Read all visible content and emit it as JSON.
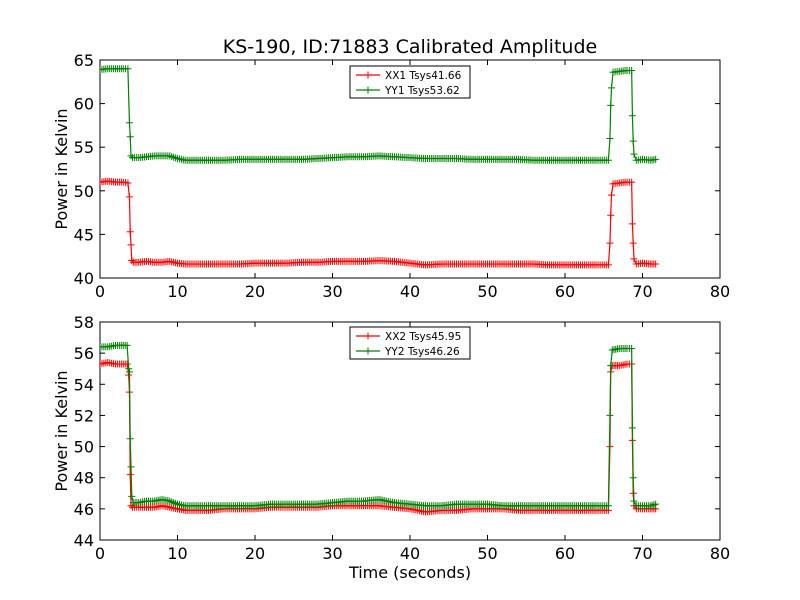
{
  "chart_data": [
    {
      "type": "line",
      "title": "KS-190, ID:71883 Calibrated Amplitude",
      "xlabel": "",
      "ylabel": "Power in Kelvin",
      "xlim": [
        0,
        80
      ],
      "ylim": [
        40,
        65
      ],
      "xticks": [
        0,
        10,
        20,
        30,
        40,
        50,
        60,
        70,
        80
      ],
      "yticks": [
        40,
        45,
        50,
        55,
        60,
        65
      ],
      "grid": false,
      "legend": "top-center",
      "series": [
        {
          "name": "XX1 Tsys41.66",
          "color": "#ff0000",
          "marker": "+",
          "points": [
            [
              0,
              51.0
            ],
            [
              1,
              51.1
            ],
            [
              2,
              51.0
            ],
            [
              3,
              51.0
            ],
            [
              3.6,
              50.9
            ],
            [
              3.8,
              49.3
            ],
            [
              3.9,
              45.3
            ],
            [
              4.0,
              43.8
            ],
            [
              4.1,
              42.0
            ],
            [
              4.3,
              41.8
            ],
            [
              5,
              41.8
            ],
            [
              6,
              41.9
            ],
            [
              7,
              41.8
            ],
            [
              8,
              41.8
            ],
            [
              9,
              41.9
            ],
            [
              10,
              41.7
            ],
            [
              11,
              41.6
            ],
            [
              12,
              41.6
            ],
            [
              14,
              41.6
            ],
            [
              16,
              41.6
            ],
            [
              18,
              41.6
            ],
            [
              20,
              41.7
            ],
            [
              22,
              41.7
            ],
            [
              24,
              41.7
            ],
            [
              26,
              41.8
            ],
            [
              28,
              41.8
            ],
            [
              30,
              41.9
            ],
            [
              32,
              41.9
            ],
            [
              34,
              41.9
            ],
            [
              36,
              42.0
            ],
            [
              38,
              41.9
            ],
            [
              40,
              41.7
            ],
            [
              42,
              41.5
            ],
            [
              44,
              41.6
            ],
            [
              46,
              41.6
            ],
            [
              48,
              41.6
            ],
            [
              50,
              41.6
            ],
            [
              52,
              41.6
            ],
            [
              54,
              41.6
            ],
            [
              56,
              41.6
            ],
            [
              58,
              41.5
            ],
            [
              60,
              41.5
            ],
            [
              62,
              41.5
            ],
            [
              64,
              41.5
            ],
            [
              65.6,
              41.5
            ],
            [
              65.8,
              44.0
            ],
            [
              65.9,
              47.2
            ],
            [
              66.0,
              49.5
            ],
            [
              66.2,
              50.8
            ],
            [
              67,
              50.9
            ],
            [
              68,
              51.0
            ],
            [
              68.6,
              51.0
            ],
            [
              68.7,
              46.2
            ],
            [
              68.8,
              44.0
            ],
            [
              68.9,
              42.2
            ],
            [
              69.2,
              41.6
            ],
            [
              70,
              41.7
            ],
            [
              71,
              41.6
            ],
            [
              71.7,
              41.6
            ]
          ]
        },
        {
          "name": "YY1 Tsys53.62",
          "color": "#008000",
          "marker": "+",
          "points": [
            [
              0,
              63.9
            ],
            [
              1,
              64.0
            ],
            [
              2,
              64.0
            ],
            [
              3,
              64.0
            ],
            [
              3.6,
              64.0
            ],
            [
              3.8,
              57.8
            ],
            [
              3.9,
              56.2
            ],
            [
              4.0,
              54.0
            ],
            [
              4.2,
              53.8
            ],
            [
              5,
              53.8
            ],
            [
              6,
              53.9
            ],
            [
              7,
              54.0
            ],
            [
              8,
              54.0
            ],
            [
              9,
              54.0
            ],
            [
              10,
              53.7
            ],
            [
              11,
              53.5
            ],
            [
              12,
              53.5
            ],
            [
              14,
              53.5
            ],
            [
              16,
              53.5
            ],
            [
              18,
              53.6
            ],
            [
              20,
              53.6
            ],
            [
              22,
              53.6
            ],
            [
              24,
              53.6
            ],
            [
              26,
              53.6
            ],
            [
              28,
              53.7
            ],
            [
              30,
              53.8
            ],
            [
              32,
              53.9
            ],
            [
              34,
              53.9
            ],
            [
              36,
              54.0
            ],
            [
              38,
              53.9
            ],
            [
              40,
              53.8
            ],
            [
              42,
              53.7
            ],
            [
              44,
              53.7
            ],
            [
              46,
              53.7
            ],
            [
              48,
              53.6
            ],
            [
              50,
              53.6
            ],
            [
              52,
              53.6
            ],
            [
              54,
              53.6
            ],
            [
              56,
              53.5
            ],
            [
              58,
              53.5
            ],
            [
              60,
              53.5
            ],
            [
              62,
              53.5
            ],
            [
              64,
              53.5
            ],
            [
              65.6,
              53.5
            ],
            [
              65.8,
              56.0
            ],
            [
              65.9,
              59.8
            ],
            [
              66.0,
              61.8
            ],
            [
              66.2,
              63.6
            ],
            [
              67,
              63.7
            ],
            [
              68,
              63.8
            ],
            [
              68.6,
              63.8
            ],
            [
              68.7,
              58.6
            ],
            [
              68.8,
              55.7
            ],
            [
              68.9,
              54.2
            ],
            [
              69.2,
              53.5
            ],
            [
              70,
              53.6
            ],
            [
              71,
              53.5
            ],
            [
              71.7,
              53.6
            ]
          ]
        }
      ]
    },
    {
      "type": "line",
      "title": "",
      "xlabel": "Time (seconds)",
      "ylabel": "Power in Kelvin",
      "xlim": [
        0,
        80
      ],
      "ylim": [
        44,
        58
      ],
      "xticks": [
        0,
        10,
        20,
        30,
        40,
        50,
        60,
        70,
        80
      ],
      "yticks": [
        44,
        46,
        48,
        50,
        52,
        54,
        56,
        58
      ],
      "grid": false,
      "legend": "top-center",
      "series": [
        {
          "name": "XX2 Tsys45.95",
          "color": "#ff0000",
          "marker": "+",
          "points": [
            [
              0,
              55.3
            ],
            [
              1,
              55.4
            ],
            [
              2,
              55.3
            ],
            [
              3,
              55.3
            ],
            [
              3.5,
              55.3
            ],
            [
              3.7,
              54.6
            ],
            [
              3.8,
              53.5
            ],
            [
              3.9,
              48.2
            ],
            [
              4.0,
              46.2
            ],
            [
              4.2,
              46.1
            ],
            [
              5,
              46.1
            ],
            [
              6,
              46.1
            ],
            [
              7,
              46.1
            ],
            [
              8,
              46.2
            ],
            [
              9,
              46.1
            ],
            [
              10,
              46.0
            ],
            [
              11,
              45.9
            ],
            [
              12,
              45.9
            ],
            [
              14,
              45.9
            ],
            [
              16,
              46.0
            ],
            [
              18,
              46.0
            ],
            [
              20,
              46.0
            ],
            [
              22,
              46.1
            ],
            [
              24,
              46.1
            ],
            [
              26,
              46.1
            ],
            [
              28,
              46.1
            ],
            [
              30,
              46.2
            ],
            [
              32,
              46.2
            ],
            [
              34,
              46.2
            ],
            [
              36,
              46.2
            ],
            [
              38,
              46.1
            ],
            [
              40,
              46.0
            ],
            [
              42,
              45.8
            ],
            [
              44,
              45.9
            ],
            [
              46,
              45.9
            ],
            [
              48,
              46.0
            ],
            [
              50,
              46.0
            ],
            [
              52,
              46.0
            ],
            [
              54,
              45.9
            ],
            [
              56,
              45.9
            ],
            [
              58,
              45.9
            ],
            [
              60,
              45.9
            ],
            [
              62,
              45.9
            ],
            [
              64,
              45.9
            ],
            [
              65.6,
              45.9
            ],
            [
              65.8,
              50.0
            ],
            [
              65.9,
              54.8
            ],
            [
              66.1,
              55.2
            ],
            [
              67,
              55.2
            ],
            [
              68,
              55.3
            ],
            [
              68.6,
              55.3
            ],
            [
              68.7,
              50.4
            ],
            [
              68.8,
              47.0
            ],
            [
              68.9,
              46.2
            ],
            [
              69.2,
              46.0
            ],
            [
              70,
              46.0
            ],
            [
              71,
              46.0
            ],
            [
              71.7,
              46.0
            ]
          ]
        },
        {
          "name": "YY2 Tsys46.26",
          "color": "#008000",
          "marker": "+",
          "points": [
            [
              0,
              56.4
            ],
            [
              1,
              56.4
            ],
            [
              2,
              56.5
            ],
            [
              3,
              56.5
            ],
            [
              3.5,
              56.5
            ],
            [
              3.7,
              55.0
            ],
            [
              3.8,
              54.8
            ],
            [
              3.9,
              50.5
            ],
            [
              4.0,
              48.7
            ],
            [
              4.1,
              46.8
            ],
            [
              4.3,
              46.4
            ],
            [
              5,
              46.4
            ],
            [
              6,
              46.5
            ],
            [
              7,
              46.5
            ],
            [
              8,
              46.6
            ],
            [
              9,
              46.5
            ],
            [
              10,
              46.3
            ],
            [
              11,
              46.2
            ],
            [
              12,
              46.2
            ],
            [
              14,
              46.2
            ],
            [
              16,
              46.2
            ],
            [
              18,
              46.2
            ],
            [
              20,
              46.2
            ],
            [
              22,
              46.3
            ],
            [
              24,
              46.3
            ],
            [
              26,
              46.3
            ],
            [
              28,
              46.3
            ],
            [
              30,
              46.4
            ],
            [
              32,
              46.5
            ],
            [
              34,
              46.5
            ],
            [
              36,
              46.6
            ],
            [
              38,
              46.4
            ],
            [
              40,
              46.3
            ],
            [
              42,
              46.2
            ],
            [
              44,
              46.2
            ],
            [
              46,
              46.3
            ],
            [
              48,
              46.3
            ],
            [
              50,
              46.3
            ],
            [
              52,
              46.2
            ],
            [
              54,
              46.2
            ],
            [
              56,
              46.2
            ],
            [
              58,
              46.2
            ],
            [
              60,
              46.2
            ],
            [
              62,
              46.2
            ],
            [
              64,
              46.2
            ],
            [
              65.6,
              46.2
            ],
            [
              65.8,
              52.0
            ],
            [
              65.9,
              55.2
            ],
            [
              66.1,
              56.2
            ],
            [
              67,
              56.3
            ],
            [
              68,
              56.3
            ],
            [
              68.6,
              56.3
            ],
            [
              68.7,
              51.2
            ],
            [
              68.8,
              48.0
            ],
            [
              68.9,
              46.5
            ],
            [
              69.2,
              46.2
            ],
            [
              70,
              46.2
            ],
            [
              71,
              46.2
            ],
            [
              71.7,
              46.3
            ]
          ]
        }
      ]
    }
  ]
}
